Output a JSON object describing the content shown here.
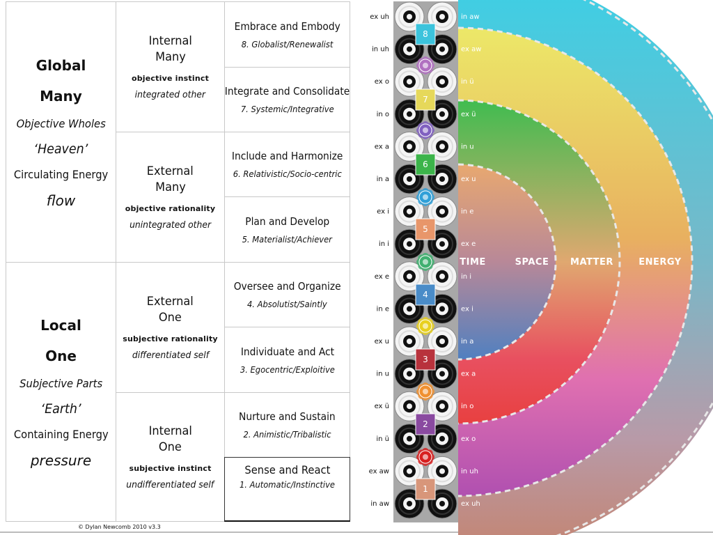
{
  "left": {
    "global": {
      "title": "Global",
      "many": "Many",
      "wholes": "Objective Wholes",
      "place": "‘Heaven’",
      "energy": "Circulating Energy",
      "mode": "flow"
    },
    "local": {
      "title": "Local",
      "one": "One",
      "parts": "Subjective Parts",
      "place": "‘Earth’",
      "energy": "Containing Energy",
      "mode": "pressure"
    }
  },
  "middle": [
    {
      "line1": "Internal",
      "line2": "Many",
      "bold": "objective instinct",
      "italic": "integrated other"
    },
    {
      "line1": "External",
      "line2": "Many",
      "bold": "objective rationality",
      "italic": "unintegrated other"
    },
    {
      "line1": "External",
      "line2": "One",
      "bold": "subjective rationality",
      "italic": "differentiated self"
    },
    {
      "line1": "Internal",
      "line2": "One",
      "bold": "subjective instinct",
      "italic": "undifferentiated self"
    }
  ],
  "stages": [
    {
      "title": "Embrace and Embody",
      "sub": "8. Globalist/Renewalist"
    },
    {
      "title": "Integrate and Consolidate",
      "sub": "7. Systemic/Integrative"
    },
    {
      "title": "Include and Harmonize",
      "sub": "6. Relativistic/Socio-centric"
    },
    {
      "title": "Plan and Develop",
      "sub": "5. Materialist/Achiever"
    },
    {
      "title": "Oversee and Organize",
      "sub": "4. Absolutist/Saintly"
    },
    {
      "title": "Individuate and Act",
      "sub": "3. Egocentric/Exploitive"
    },
    {
      "title": "Nurture and Sustain",
      "sub": "2. Animistic/Tribalistic"
    },
    {
      "title": "Sense and React",
      "sub": "1. Automatic/Instinctive"
    }
  ],
  "copyright": "© Dylan Newcomb 2010  v3.3",
  "left_sounds": [
    "ex uh",
    "in uh",
    "ex o",
    "in o",
    "ex a",
    "in a",
    "ex i",
    "in i",
    "ex e",
    "in e",
    "ex u",
    "in u",
    "ex ü",
    "in ü",
    "ex aw",
    "in aw"
  ],
  "right_sounds": [
    "in aw",
    "ex aw",
    "in ü",
    "ex ü",
    "in u",
    "ex u",
    "in e",
    "ex e",
    "in i",
    "ex i",
    "in a",
    "ex a",
    "in o",
    "ex o",
    "in uh",
    "ex uh"
  ],
  "badges": [
    {
      "num": "8",
      "color": "#3cc3dc"
    },
    {
      "num": "7",
      "color": "#e6d85a"
    },
    {
      "num": "6",
      "color": "#3cb44a"
    },
    {
      "num": "5",
      "color": "#e8966a"
    },
    {
      "num": "4",
      "color": "#4a8cc8"
    },
    {
      "num": "3",
      "color": "#b8323c"
    },
    {
      "num": "2",
      "color": "#8a4aa0"
    },
    {
      "num": "1",
      "color": "#d8967a"
    }
  ],
  "chakras": [
    {
      "name": "crown",
      "color": "#b070c0"
    },
    {
      "name": "third-eye",
      "color": "#8060c0"
    },
    {
      "name": "throat",
      "color": "#30a0d8"
    },
    {
      "name": "heart",
      "color": "#40b070"
    },
    {
      "name": "solar-plexus",
      "color": "#e8d020"
    },
    {
      "name": "sacral",
      "color": "#f09030"
    },
    {
      "name": "root",
      "color": "#d82020"
    }
  ],
  "rings": [
    {
      "label": "TIME"
    },
    {
      "label": "SPACE"
    },
    {
      "label": "MATTER"
    },
    {
      "label": "ENERGY"
    }
  ]
}
